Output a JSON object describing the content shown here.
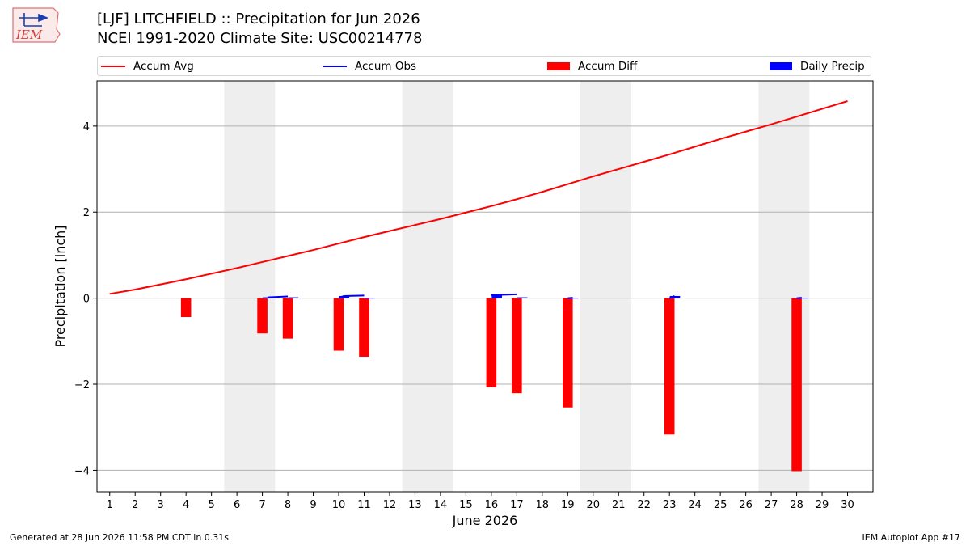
{
  "logo": {
    "text": "IEM"
  },
  "title_line1": "[LJF] LITCHFIELD :: Precipitation for Jun 2026",
  "title_line2": "NCEI 1991-2020 Climate Site: USC00214778",
  "colors": {
    "avg": "#ff0000",
    "obs": "#0000ff",
    "diff": "#ff0000",
    "daily": "#0000ff",
    "weekend": "#eeeeee",
    "grid": "#b0b0b0"
  },
  "legend": [
    {
      "label": "Accum Avg",
      "kind": "line",
      "color": "#ff0000"
    },
    {
      "label": "Accum Obs",
      "kind": "line",
      "color": "#0000ff"
    },
    {
      "label": "Accum Diff",
      "kind": "box",
      "color": "#ff0000"
    },
    {
      "label": "Daily Precip",
      "kind": "box",
      "color": "#0000ff"
    }
  ],
  "footer": {
    "left": "Generated at 28 Jun 2026 11:58 PM CDT in 0.31s",
    "right": "IEM Autoplot App #17"
  },
  "chart_data": {
    "type": "bar",
    "xlabel": "June 2026",
    "ylabel": "Precipitation [inch]",
    "xlim": [
      0.5,
      31
    ],
    "ylim": [
      -4.5,
      5.05
    ],
    "yticks": [
      -4,
      -2,
      0,
      2,
      4
    ],
    "ytick_labels": [
      "−4",
      "−2",
      "0",
      "2",
      "4"
    ],
    "days": [
      1,
      2,
      3,
      4,
      5,
      6,
      7,
      8,
      9,
      10,
      11,
      12,
      13,
      14,
      15,
      16,
      17,
      18,
      19,
      20,
      21,
      22,
      23,
      24,
      25,
      26,
      27,
      28,
      29,
      30
    ],
    "weekend_spans": [
      [
        5.5,
        7.5
      ],
      [
        12.5,
        14.5
      ],
      [
        19.5,
        21.5
      ],
      [
        26.5,
        28.5
      ]
    ],
    "grid": true,
    "legend_position": "top",
    "accum_avg": {
      "name": "Accum Avg",
      "x": [
        1,
        2,
        3,
        4,
        5,
        6,
        7,
        8,
        9,
        10,
        11,
        12,
        13,
        14,
        15,
        16,
        17,
        18,
        19,
        20,
        21,
        22,
        23,
        24,
        25,
        26,
        27,
        28,
        29,
        30
      ],
      "values": [
        0.1,
        0.2,
        0.32,
        0.44,
        0.57,
        0.7,
        0.84,
        0.98,
        1.12,
        1.27,
        1.42,
        1.56,
        1.7,
        1.84,
        1.99,
        2.14,
        2.3,
        2.47,
        2.65,
        2.83,
        3.0,
        3.17,
        3.34,
        3.52,
        3.7,
        3.87,
        4.04,
        4.22,
        4.4,
        4.58
      ]
    },
    "accum_obs": {
      "name": "Accum Obs",
      "x": [
        7.2,
        8.0,
        10.0,
        10.2,
        11.0,
        16.0,
        17.0,
        19.0,
        19.2,
        23.0,
        23.2,
        28.0,
        28.2
      ],
      "values": [
        0.02,
        0.04,
        0.0,
        0.05,
        0.06,
        0.07,
        0.09,
        0.0,
        0.01,
        0.0,
        0.05,
        0.0,
        0.01
      ]
    },
    "accum_diff": {
      "name": "Accum Diff",
      "x": [
        4,
        7,
        8,
        10,
        11,
        16,
        17,
        19,
        23,
        28
      ],
      "values": [
        -0.44,
        -0.82,
        -0.94,
        -1.22,
        -1.36,
        -2.07,
        -2.21,
        -2.54,
        -3.17,
        -4.02
      ]
    },
    "daily_precip": {
      "name": "Daily Precip",
      "x": [
        7,
        8,
        10,
        11,
        16,
        17,
        19,
        23,
        28
      ],
      "values": [
        0.02,
        0.02,
        0.05,
        0.01,
        0.07,
        0.02,
        0.01,
        0.05,
        0.01
      ]
    }
  }
}
